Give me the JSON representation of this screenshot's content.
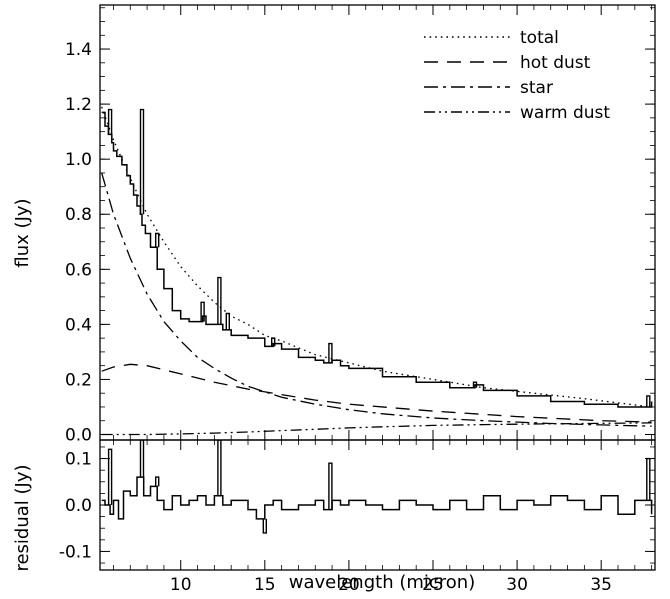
{
  "chart_data": [
    {
      "type": "line",
      "panel": "top",
      "xlabel": "",
      "ylabel": "flux (Jy)",
      "xlim": [
        5.2,
        38.2
      ],
      "ylim": [
        -0.02,
        1.56
      ],
      "xticks": [
        10,
        15,
        20,
        25,
        30,
        35
      ],
      "yticks": [
        0.0,
        0.2,
        0.4,
        0.6,
        0.8,
        1.0,
        1.2,
        1.4
      ],
      "ytick_labels": [
        "0.0",
        "0.2",
        "0.4",
        "0.6",
        "0.8",
        "1.0",
        "1.2",
        "1.4"
      ],
      "legend_position": "top-right",
      "series": [
        {
          "name": "",
          "style": "solid-step",
          "x": [
            5.3,
            5.5,
            5.7,
            5.9,
            6.0,
            6.2,
            6.5,
            6.8,
            7.0,
            7.2,
            7.4,
            7.6,
            7.7,
            7.9,
            8.2,
            8.6,
            9.0,
            9.5,
            10.0,
            10.5,
            11.0,
            11.3,
            11.5,
            12.0,
            12.5,
            12.8,
            13.0,
            14.0,
            15.0,
            15.5,
            16.0,
            17.0,
            18.0,
            18.5,
            19.0,
            19.5,
            20.0,
            22.0,
            24.0,
            26.0,
            27.5,
            28.0,
            30.0,
            32.0,
            34.0,
            36.0,
            37.0,
            38.0
          ],
          "y": [
            1.17,
            1.12,
            1.09,
            1.06,
            1.03,
            1.01,
            0.98,
            0.94,
            0.91,
            0.87,
            0.83,
            0.8,
            0.76,
            0.73,
            0.68,
            0.6,
            0.53,
            0.45,
            0.42,
            0.41,
            0.41,
            0.43,
            0.4,
            0.4,
            0.38,
            0.38,
            0.36,
            0.35,
            0.32,
            0.33,
            0.31,
            0.28,
            0.27,
            0.26,
            0.27,
            0.25,
            0.24,
            0.21,
            0.19,
            0.17,
            0.18,
            0.16,
            0.14,
            0.12,
            0.11,
            0.1,
            0.1,
            0.12
          ],
          "spikes": [
            {
              "x": 5.8,
              "y": 1.18
            },
            {
              "x": 7.7,
              "y": 1.18
            },
            {
              "x": 8.6,
              "y": 0.73
            },
            {
              "x": 11.3,
              "y": 0.48
            },
            {
              "x": 12.3,
              "y": 0.57
            },
            {
              "x": 12.8,
              "y": 0.44
            },
            {
              "x": 15.5,
              "y": 0.35
            },
            {
              "x": 18.9,
              "y": 0.33
            },
            {
              "x": 27.5,
              "y": 0.19
            },
            {
              "x": 37.8,
              "y": 0.14
            }
          ]
        },
        {
          "name": "total",
          "style": "dotted",
          "x": [
            5.3,
            6.0,
            7.0,
            8.0,
            9.0,
            10.0,
            11.0,
            12.0,
            13.0,
            14.0,
            15.0,
            16.0,
            18.0,
            20.0,
            22.0,
            25.0,
            28.0,
            31.0,
            34.0,
            38.0
          ],
          "y": [
            1.19,
            1.07,
            0.93,
            0.8,
            0.7,
            0.61,
            0.54,
            0.48,
            0.43,
            0.4,
            0.36,
            0.34,
            0.29,
            0.26,
            0.23,
            0.2,
            0.17,
            0.15,
            0.13,
            0.1
          ]
        },
        {
          "name": "hot dust",
          "style": "dashed",
          "x": [
            5.3,
            6.0,
            7.0,
            8.0,
            9.0,
            10.0,
            12.0,
            14.0,
            16.0,
            18.0,
            20.0,
            25.0,
            30.0,
            35.0,
            38.0
          ],
          "y": [
            0.23,
            0.245,
            0.255,
            0.25,
            0.235,
            0.22,
            0.19,
            0.165,
            0.145,
            0.125,
            0.11,
            0.085,
            0.065,
            0.05,
            0.045
          ]
        },
        {
          "name": "star",
          "style": "dash-dot",
          "x": [
            5.3,
            6.0,
            7.0,
            8.0,
            9.0,
            10.0,
            11.0,
            12.0,
            13.0,
            14.0,
            15.0,
            16.0,
            18.0,
            20.0,
            22.0,
            25.0,
            28.0,
            32.0,
            35.0,
            38.0
          ],
          "y": [
            0.95,
            0.8,
            0.64,
            0.51,
            0.41,
            0.34,
            0.28,
            0.24,
            0.205,
            0.175,
            0.155,
            0.135,
            0.11,
            0.09,
            0.075,
            0.06,
            0.05,
            0.04,
            0.035,
            0.03
          ]
        },
        {
          "name": "warm dust",
          "style": "dash-dot-dot",
          "x": [
            5.3,
            8.0,
            10.0,
            12.0,
            14.0,
            16.0,
            18.0,
            20.0,
            22.0,
            25.0,
            28.0,
            31.0,
            34.0,
            38.0
          ],
          "y": [
            0.0,
            0.0,
            0.002,
            0.005,
            0.009,
            0.014,
            0.019,
            0.024,
            0.028,
            0.033,
            0.036,
            0.038,
            0.04,
            0.042
          ]
        }
      ]
    },
    {
      "type": "line",
      "panel": "bottom",
      "xlabel": "wavelength (micron)",
      "ylabel": "residual (Jy)",
      "xlim": [
        5.2,
        38.2
      ],
      "ylim": [
        -0.14,
        0.14
      ],
      "xticks": [
        10,
        15,
        20,
        25,
        30,
        35
      ],
      "yticks": [
        -0.1,
        0.0,
        0.1
      ],
      "ytick_labels": [
        "-0.1",
        "0.0",
        "0.1"
      ],
      "series": [
        {
          "name": "",
          "style": "solid-step",
          "x": [
            5.3,
            5.5,
            5.8,
            6.0,
            6.3,
            6.6,
            7.0,
            7.4,
            7.8,
            8.2,
            8.6,
            9.0,
            9.5,
            10.0,
            10.5,
            11.0,
            11.5,
            12.0,
            12.5,
            13.0,
            14.0,
            14.5,
            15.0,
            15.5,
            16.0,
            17.0,
            18.0,
            18.5,
            19.0,
            19.5,
            20.0,
            21.0,
            22.0,
            23.0,
            24.0,
            25.0,
            26.0,
            27.0,
            28.0,
            29.0,
            30.0,
            31.0,
            32.0,
            33.0,
            34.0,
            35.0,
            36.0,
            37.0,
            38.0
          ],
          "y": [
            0.01,
            0.0,
            -0.02,
            0.01,
            -0.03,
            0.03,
            0.02,
            0.06,
            0.02,
            0.04,
            0.01,
            -0.01,
            0.02,
            0.0,
            0.01,
            0.02,
            0.0,
            0.02,
            0.0,
            0.01,
            -0.01,
            -0.03,
            0.0,
            0.01,
            -0.01,
            0.0,
            0.01,
            -0.01,
            0.01,
            0.0,
            0.01,
            0.0,
            -0.01,
            0.01,
            0.0,
            -0.01,
            0.01,
            -0.01,
            0.02,
            -0.01,
            0.01,
            0.0,
            0.02,
            0.01,
            -0.01,
            0.02,
            -0.02,
            0.01,
            -0.02
          ],
          "spikes": [
            {
              "x": 5.8,
              "y": 0.12
            },
            {
              "x": 7.7,
              "y": 0.14
            },
            {
              "x": 8.6,
              "y": 0.06
            },
            {
              "x": 12.3,
              "y": 0.14
            },
            {
              "x": 15.0,
              "y": -0.06
            },
            {
              "x": 18.9,
              "y": 0.09
            },
            {
              "x": 37.8,
              "y": 0.1
            }
          ]
        }
      ]
    }
  ]
}
